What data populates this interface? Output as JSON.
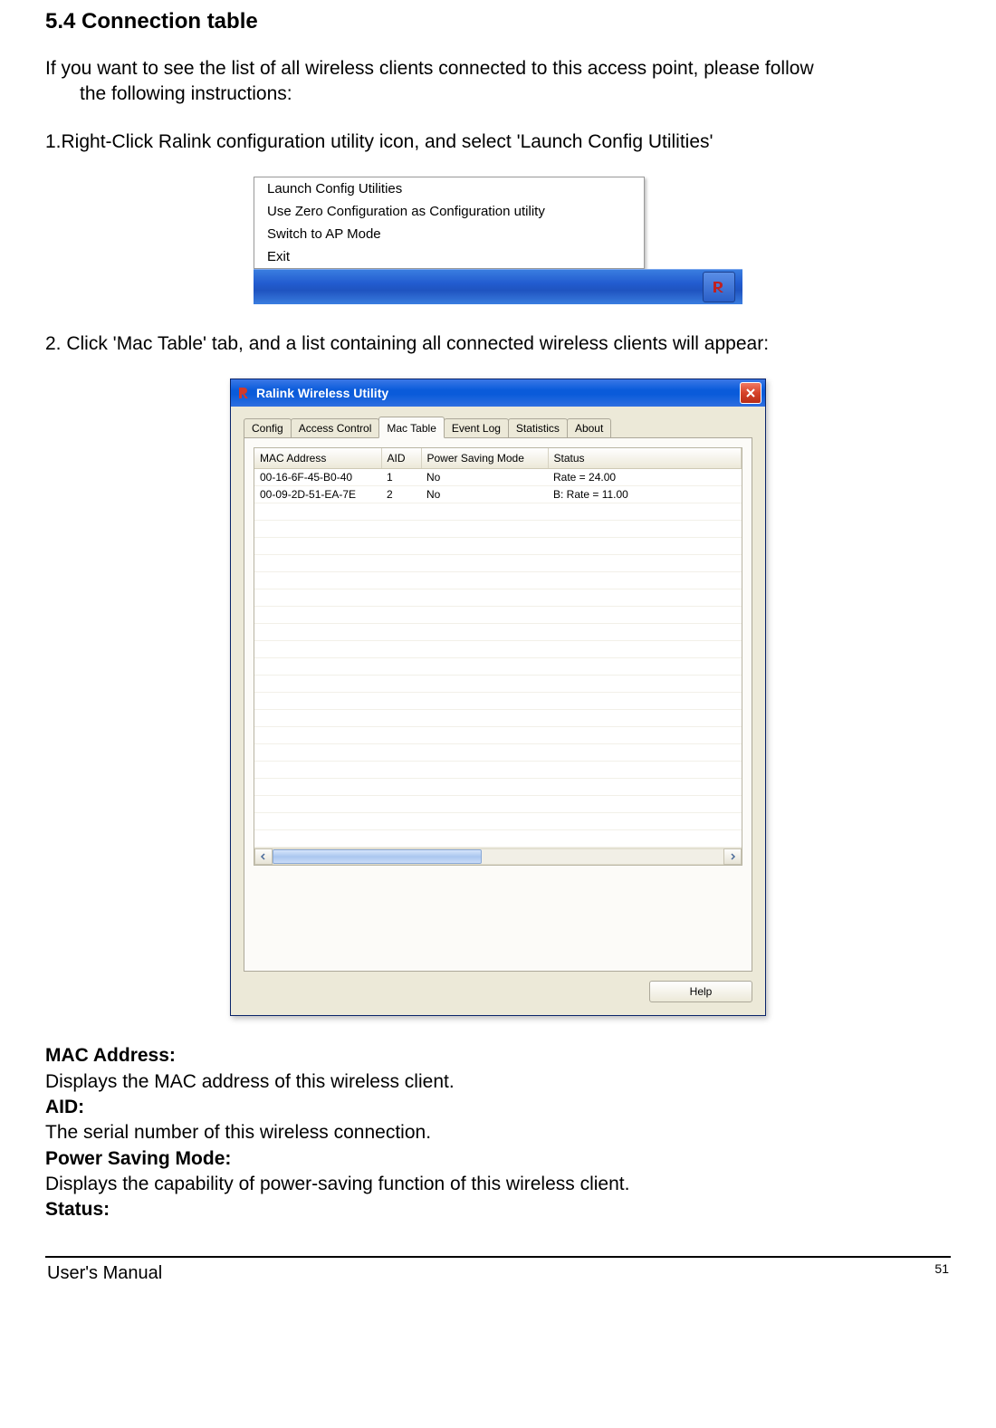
{
  "section": {
    "heading": "5.4  Connection table",
    "intro_line1": "If you want to see the list of all wireless clients connected to this access point, please follow",
    "intro_line2": "the following instructions:",
    "step1": "1.Right-Click Ralink configuration utility icon, and select 'Launch Config Utilities'",
    "step2": "2. Click 'Mac Table' tab, and a list containing all connected wireless clients will appear:"
  },
  "context_menu": {
    "items": [
      "Launch Config Utilities",
      "Use Zero Configuration as Configuration utility",
      "Switch to AP Mode",
      "Exit"
    ]
  },
  "window": {
    "title": "Ralink Wireless Utility",
    "tabs": [
      "Config",
      "Access Control",
      "Mac Table",
      "Event Log",
      "Statistics",
      "About"
    ],
    "active_tab_index": 2,
    "table": {
      "columns": [
        "MAC Address",
        "AID",
        "Power Saving Mode",
        "Status"
      ],
      "col_widths": [
        "140px",
        "44px",
        "140px",
        "auto"
      ],
      "rows": [
        [
          "00-16-6F-45-B0-40",
          "1",
          "No",
          "Rate = 24.00"
        ],
        [
          "00-09-2D-51-EA-7E",
          "2",
          "No",
          "B: Rate = 11.00"
        ]
      ],
      "empty_row_count": 20
    },
    "help_button": "Help"
  },
  "definitions": [
    {
      "term": "MAC Address:",
      "desc": "Displays the MAC address of this wireless client."
    },
    {
      "term": "AID:",
      "desc": "The serial number of this wireless connection."
    },
    {
      "term": "Power Saving Mode:",
      "desc": "Displays the capability of power-saving function of this wireless client."
    },
    {
      "term": "Status:",
      "desc": ""
    }
  ],
  "footer": {
    "left": "User's Manual",
    "page": "51"
  },
  "colors": {
    "xp_blue": "#225bcf",
    "panel_bg": "#ece9d8"
  }
}
